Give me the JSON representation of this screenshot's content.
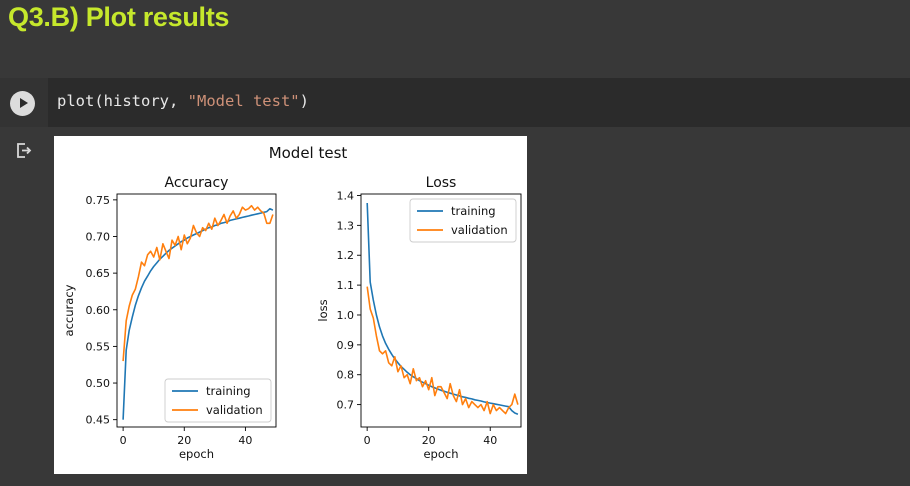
{
  "section_heading": "Q3.B) Plot results",
  "code": {
    "func": "plot(history, ",
    "str_arg": "\"Model test\"",
    "close": ")"
  },
  "icons": {
    "run": "play-icon",
    "output": "output-arrow-icon"
  },
  "colors": {
    "training": "#1f77b4",
    "validation": "#ff7f0e",
    "heading": "#c6e82c"
  },
  "figure": {
    "suptitle": "Model test"
  },
  "chart_data": [
    {
      "type": "line",
      "title": "Accuracy",
      "xlabel": "epoch",
      "ylabel": "accuracy",
      "xlim": [
        -2,
        50
      ],
      "ylim": [
        0.44,
        0.758
      ],
      "xticks": [
        0,
        20,
        40
      ],
      "yticks": [
        0.45,
        0.5,
        0.55,
        0.6,
        0.65,
        0.7,
        0.75
      ],
      "ytick_labels": [
        "0.45",
        "0.50",
        "0.55",
        "0.60",
        "0.65",
        "0.70",
        "0.75"
      ],
      "legend": "lower-right",
      "x": [
        0,
        1,
        2,
        3,
        4,
        5,
        6,
        7,
        8,
        9,
        10,
        11,
        12,
        13,
        14,
        15,
        16,
        17,
        18,
        19,
        20,
        21,
        22,
        23,
        24,
        25,
        26,
        27,
        28,
        29,
        30,
        31,
        32,
        33,
        34,
        35,
        36,
        37,
        38,
        39,
        40,
        41,
        42,
        43,
        44,
        45,
        46,
        47,
        48,
        49
      ],
      "series": [
        {
          "name": "training",
          "values": [
            0.45,
            0.545,
            0.572,
            0.59,
            0.606,
            0.619,
            0.63,
            0.639,
            0.646,
            0.653,
            0.659,
            0.664,
            0.669,
            0.673,
            0.677,
            0.681,
            0.684,
            0.687,
            0.69,
            0.693,
            0.695,
            0.698,
            0.7,
            0.702,
            0.704,
            0.706,
            0.708,
            0.71,
            0.712,
            0.713,
            0.715,
            0.716,
            0.718,
            0.719,
            0.72,
            0.722,
            0.723,
            0.724,
            0.725,
            0.726,
            0.727,
            0.728,
            0.729,
            0.73,
            0.731,
            0.732,
            0.733,
            0.734,
            0.738,
            0.736
          ]
        },
        {
          "name": "validation",
          "values": [
            0.53,
            0.585,
            0.605,
            0.62,
            0.628,
            0.645,
            0.665,
            0.66,
            0.675,
            0.68,
            0.672,
            0.685,
            0.668,
            0.69,
            0.68,
            0.67,
            0.695,
            0.688,
            0.7,
            0.682,
            0.702,
            0.69,
            0.698,
            0.715,
            0.705,
            0.7,
            0.712,
            0.708,
            0.718,
            0.71,
            0.725,
            0.715,
            0.722,
            0.73,
            0.718,
            0.728,
            0.735,
            0.725,
            0.73,
            0.74,
            0.736,
            0.738,
            0.742,
            0.736,
            0.74,
            0.735,
            0.732,
            0.718,
            0.718,
            0.73
          ]
        }
      ]
    },
    {
      "type": "line",
      "title": "Loss",
      "xlabel": "epoch",
      "ylabel": "loss",
      "xlim": [
        -2,
        50
      ],
      "ylim": [
        0.625,
        1.405
      ],
      "xticks": [
        0,
        20,
        40
      ],
      "yticks": [
        0.7,
        0.8,
        0.9,
        1.0,
        1.1,
        1.2,
        1.3,
        1.4
      ],
      "ytick_labels": [
        "0.7",
        "0.8",
        "0.9",
        "1.0",
        "1.1",
        "1.2",
        "1.3",
        "1.4"
      ],
      "legend": "upper-right",
      "x": [
        0,
        1,
        2,
        3,
        4,
        5,
        6,
        7,
        8,
        9,
        10,
        11,
        12,
        13,
        14,
        15,
        16,
        17,
        18,
        19,
        20,
        21,
        22,
        23,
        24,
        25,
        26,
        27,
        28,
        29,
        30,
        31,
        32,
        33,
        34,
        35,
        36,
        37,
        38,
        39,
        40,
        41,
        42,
        43,
        44,
        45,
        46,
        47,
        48,
        49
      ],
      "series": [
        {
          "name": "training",
          "values": [
            1.375,
            1.11,
            1.05,
            1.0,
            0.96,
            0.93,
            0.905,
            0.885,
            0.868,
            0.853,
            0.84,
            0.828,
            0.818,
            0.808,
            0.8,
            0.793,
            0.787,
            0.78,
            0.775,
            0.77,
            0.765,
            0.76,
            0.756,
            0.752,
            0.748,
            0.745,
            0.741,
            0.738,
            0.735,
            0.732,
            0.729,
            0.726,
            0.724,
            0.721,
            0.719,
            0.716,
            0.714,
            0.712,
            0.709,
            0.707,
            0.705,
            0.703,
            0.701,
            0.699,
            0.697,
            0.695,
            0.693,
            0.68,
            0.672,
            0.668
          ]
        },
        {
          "name": "validation",
          "values": [
            1.095,
            1.02,
            0.99,
            0.93,
            0.88,
            0.87,
            0.88,
            0.84,
            0.83,
            0.86,
            0.81,
            0.83,
            0.79,
            0.8,
            0.77,
            0.82,
            0.78,
            0.79,
            0.76,
            0.78,
            0.75,
            0.79,
            0.73,
            0.76,
            0.76,
            0.74,
            0.72,
            0.77,
            0.73,
            0.71,
            0.75,
            0.7,
            0.72,
            0.69,
            0.71,
            0.7,
            0.69,
            0.7,
            0.68,
            0.71,
            0.67,
            0.7,
            0.68,
            0.69,
            0.68,
            0.67,
            0.69,
            0.7,
            0.735,
            0.7
          ]
        }
      ]
    }
  ]
}
